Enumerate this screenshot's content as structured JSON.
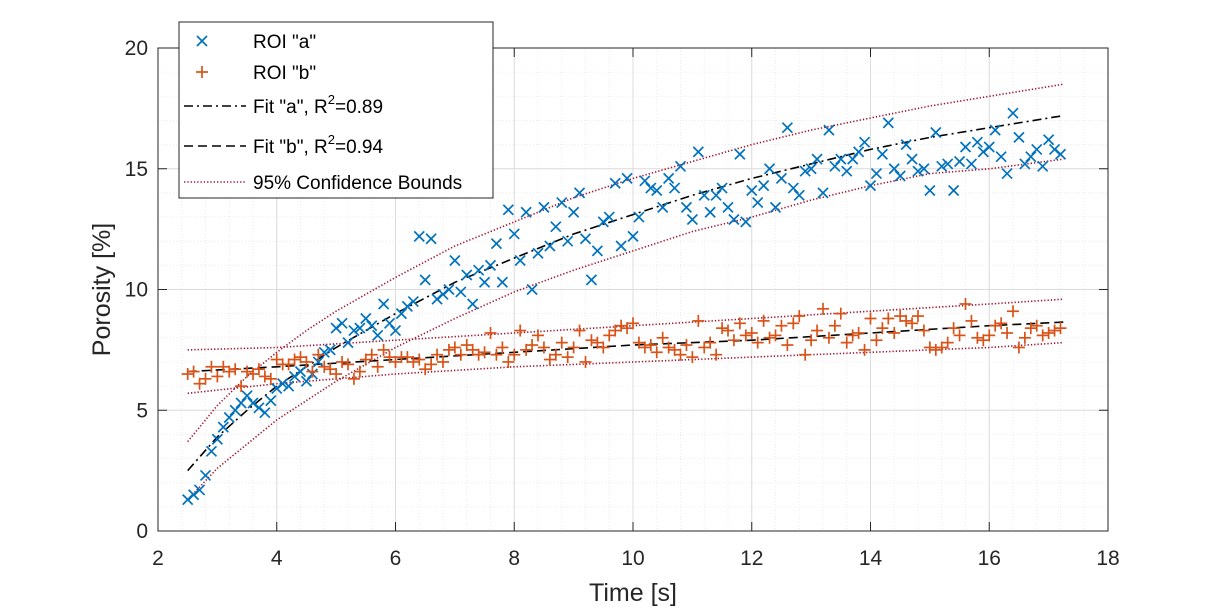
{
  "chart_data": {
    "type": "scatter",
    "xlabel": "Time [s]",
    "ylabel": "Porosity [%]",
    "xlim": [
      2,
      18
    ],
    "ylim": [
      0,
      20
    ],
    "xticks": [
      2,
      4,
      6,
      8,
      10,
      12,
      14,
      16,
      18
    ],
    "yticks": [
      0,
      5,
      10,
      15,
      20
    ],
    "x_minor_step": 0.4,
    "y_minor_step": 1,
    "grid": "major-and-minor",
    "legend_position": "top-left",
    "legend": [
      {
        "key": "a",
        "label": "ROI \"a\"",
        "marker": "x"
      },
      {
        "key": "b",
        "label": "ROI \"b\"",
        "marker": "+"
      },
      {
        "key": "fit_a",
        "label_pre": "Fit \"a\", R",
        "label_sup": "2",
        "label_post": "=0.89",
        "line": "dashdot"
      },
      {
        "key": "fit_b",
        "label_pre": "Fit \"b\", R",
        "label_sup": "2",
        "label_post": "=0.94",
        "line": "dashed"
      },
      {
        "key": "bounds",
        "label": "95% Confidence Bounds",
        "line": "dotted"
      }
    ],
    "colors": {
      "roi_a": "#0072BD",
      "roi_b": "#D95319",
      "fit": "#000000",
      "bounds": "#A2142F",
      "grid": "#dcdcdc",
      "axis": "#262626"
    },
    "series": [
      {
        "name": "ROI \"a\"",
        "marker": "x",
        "x": [
          2.5,
          2.6,
          2.7,
          2.8,
          2.9,
          3.0,
          3.1,
          3.2,
          3.3,
          3.4,
          3.5,
          3.6,
          3.7,
          3.8,
          3.9,
          4.0,
          4.1,
          4.2,
          4.3,
          4.4,
          4.5,
          4.6,
          4.7,
          4.8,
          4.9,
          5.0,
          5.1,
          5.2,
          5.3,
          5.4,
          5.5,
          5.6,
          5.7,
          5.8,
          5.9,
          6.0,
          6.1,
          6.2,
          6.3,
          6.4,
          6.5,
          6.6,
          6.7,
          6.8,
          6.9,
          7.0,
          7.1,
          7.2,
          7.3,
          7.4,
          7.5,
          7.6,
          7.7,
          7.8,
          7.9,
          8.0,
          8.1,
          8.2,
          8.3,
          8.4,
          8.5,
          8.6,
          8.7,
          8.8,
          8.9,
          9.0,
          9.1,
          9.2,
          9.3,
          9.4,
          9.5,
          9.6,
          9.7,
          9.8,
          9.9,
          10.0,
          10.1,
          10.2,
          10.3,
          10.4,
          10.5,
          10.6,
          10.7,
          10.8,
          10.9,
          11.0,
          11.1,
          11.2,
          11.3,
          11.4,
          11.5,
          11.6,
          11.7,
          11.8,
          11.9,
          12.0,
          12.1,
          12.2,
          12.3,
          12.4,
          12.5,
          12.6,
          12.7,
          12.8,
          12.9,
          13.0,
          13.1,
          13.2,
          13.3,
          13.4,
          13.5,
          13.6,
          13.7,
          13.8,
          13.9,
          14.0,
          14.1,
          14.2,
          14.3,
          14.4,
          14.5,
          14.6,
          14.7,
          14.8,
          14.9,
          15.0,
          15.1,
          15.2,
          15.3,
          15.4,
          15.5,
          15.6,
          15.7,
          15.8,
          15.9,
          16.0,
          16.1,
          16.2,
          16.3,
          16.4,
          16.5,
          16.6,
          16.7,
          16.8,
          16.9,
          17.0,
          17.1,
          17.2
        ],
        "y": [
          1.3,
          1.5,
          1.7,
          2.3,
          3.3,
          3.8,
          4.3,
          4.7,
          5.0,
          5.3,
          5.6,
          5.3,
          5.1,
          4.9,
          5.4,
          5.9,
          6.1,
          6.0,
          6.4,
          6.6,
          6.2,
          6.5,
          7.0,
          7.4,
          7.5,
          8.4,
          8.6,
          7.8,
          8.3,
          8.4,
          8.8,
          8.5,
          8.1,
          9.4,
          8.6,
          8.3,
          9.0,
          9.3,
          9.5,
          12.2,
          10.4,
          12.1,
          9.6,
          9.8,
          10.0,
          11.2,
          9.9,
          10.6,
          9.4,
          10.8,
          10.3,
          11.0,
          11.9,
          10.3,
          13.3,
          12.3,
          11.2,
          13.2,
          10.0,
          11.5,
          13.4,
          11.8,
          12.6,
          13.6,
          12.0,
          13.2,
          14.0,
          12.1,
          10.4,
          11.6,
          12.8,
          13.0,
          14.4,
          11.8,
          14.6,
          12.2,
          13.0,
          14.5,
          14.2,
          14.1,
          13.4,
          14.6,
          14.2,
          15.1,
          13.4,
          12.9,
          15.7,
          13.9,
          13.2,
          13.9,
          14.2,
          13.4,
          12.9,
          15.6,
          12.8,
          14.1,
          13.6,
          14.3,
          15.0,
          13.4,
          14.6,
          16.7,
          14.2,
          13.9,
          14.9,
          15.0,
          15.4,
          14.0,
          16.6,
          15.1,
          15.4,
          14.9,
          15.4,
          15.7,
          16.1,
          14.3,
          14.8,
          15.6,
          16.9,
          15.0,
          14.7,
          16.0,
          15.4,
          14.9,
          15.0,
          14.1,
          16.5,
          15.1,
          15.2,
          14.1,
          15.3,
          15.9,
          15.2,
          16.1,
          15.7,
          15.9,
          16.6,
          15.5,
          14.8,
          17.3,
          16.3,
          15.2,
          15.5,
          15.8,
          15.1,
          16.2,
          15.8,
          15.6
        ]
      },
      {
        "name": "ROI \"b\"",
        "marker": "+",
        "x": [
          2.5,
          2.6,
          2.7,
          2.8,
          2.9,
          3.0,
          3.1,
          3.2,
          3.3,
          3.4,
          3.5,
          3.6,
          3.7,
          3.8,
          3.9,
          4.0,
          4.1,
          4.2,
          4.3,
          4.4,
          4.5,
          4.6,
          4.7,
          4.8,
          4.9,
          5.0,
          5.1,
          5.2,
          5.3,
          5.4,
          5.5,
          5.6,
          5.7,
          5.8,
          5.9,
          6.0,
          6.1,
          6.2,
          6.3,
          6.4,
          6.5,
          6.6,
          6.7,
          6.8,
          6.9,
          7.0,
          7.1,
          7.2,
          7.3,
          7.4,
          7.5,
          7.6,
          7.7,
          7.8,
          7.9,
          8.0,
          8.1,
          8.2,
          8.3,
          8.4,
          8.5,
          8.6,
          8.7,
          8.8,
          8.9,
          9.0,
          9.1,
          9.2,
          9.3,
          9.4,
          9.5,
          9.6,
          9.7,
          9.8,
          9.9,
          10.0,
          10.1,
          10.2,
          10.3,
          10.4,
          10.5,
          10.6,
          10.7,
          10.8,
          10.9,
          11.0,
          11.1,
          11.2,
          11.3,
          11.4,
          11.5,
          11.6,
          11.7,
          11.8,
          11.9,
          12.0,
          12.1,
          12.2,
          12.3,
          12.4,
          12.5,
          12.6,
          12.7,
          12.8,
          12.9,
          13.0,
          13.1,
          13.2,
          13.3,
          13.4,
          13.5,
          13.6,
          13.7,
          13.8,
          13.9,
          14.0,
          14.1,
          14.2,
          14.3,
          14.4,
          14.5,
          14.6,
          14.7,
          14.8,
          14.9,
          15.0,
          15.1,
          15.2,
          15.3,
          15.4,
          15.5,
          15.6,
          15.7,
          15.8,
          15.9,
          16.0,
          16.1,
          16.2,
          16.3,
          16.4,
          16.5,
          16.6,
          16.7,
          16.8,
          16.9,
          17.0,
          17.1,
          17.2
        ],
        "y": [
          6.5,
          6.6,
          6.1,
          6.3,
          6.8,
          6.4,
          6.8,
          6.6,
          6.7,
          6.0,
          6.6,
          6.5,
          6.7,
          6.4,
          6.3,
          7.1,
          6.9,
          6.9,
          7.1,
          7.2,
          7.0,
          6.6,
          7.3,
          6.8,
          6.7,
          6.5,
          7.0,
          6.9,
          6.3,
          6.6,
          7.1,
          7.3,
          6.8,
          7.5,
          7.2,
          7.0,
          7.2,
          7.2,
          7.0,
          7.1,
          6.7,
          6.9,
          7.3,
          7.0,
          7.5,
          7.6,
          7.3,
          7.7,
          7.5,
          7.3,
          7.4,
          8.2,
          7.3,
          7.6,
          7.0,
          7.3,
          8.3,
          7.5,
          7.7,
          8.1,
          7.6,
          7.1,
          7.3,
          7.8,
          7.2,
          7.6,
          8.3,
          7.0,
          7.9,
          7.8,
          7.6,
          8.1,
          8.3,
          8.5,
          8.4,
          8.6,
          7.8,
          7.6,
          7.7,
          7.4,
          8.0,
          7.6,
          7.5,
          7.3,
          7.7,
          7.2,
          8.7,
          7.6,
          7.8,
          7.3,
          8.4,
          8.3,
          7.9,
          8.6,
          8.1,
          8.2,
          7.8,
          8.7,
          8.0,
          8.1,
          8.5,
          7.7,
          8.6,
          8.9,
          7.3,
          7.9,
          8.3,
          9.2,
          8.0,
          8.5,
          9.0,
          7.8,
          8.1,
          8.2,
          7.5,
          8.8,
          7.9,
          8.4,
          8.8,
          8.2,
          8.9,
          8.7,
          8.6,
          8.9,
          8.3,
          7.6,
          7.5,
          7.6,
          7.8,
          8.4,
          8.1,
          9.4,
          8.7,
          8.0,
          7.9,
          8.1,
          8.5,
          8.6,
          8.2,
          9.1,
          7.6,
          8.0,
          8.4,
          8.5,
          8.1,
          8.2,
          8.3,
          8.4
        ]
      },
      {
        "name": "Fit \"a\"",
        "line": "dashdot",
        "x": [
          2.5,
          3.0,
          3.5,
          4.0,
          4.5,
          5.0,
          6.0,
          7.0,
          8.0,
          9.0,
          10.0,
          11.0,
          12.0,
          13.0,
          14.0,
          15.0,
          16.0,
          17.25
        ],
        "y": [
          2.5,
          3.9,
          5.0,
          6.0,
          6.8,
          7.6,
          9.0,
          10.3,
          11.3,
          12.3,
          13.1,
          13.9,
          14.6,
          15.2,
          15.8,
          16.3,
          16.7,
          17.2
        ]
      },
      {
        "name": "Fit \"b\"",
        "line": "dashed",
        "x": [
          2.5,
          4.0,
          6.0,
          8.0,
          10.0,
          12.0,
          14.0,
          16.0,
          17.25
        ],
        "y": [
          6.6,
          6.8,
          7.1,
          7.4,
          7.7,
          7.9,
          8.2,
          8.5,
          8.65
        ]
      },
      {
        "name": "95% Confidence Bounds a (upper)",
        "line": "dotted",
        "x": [
          2.5,
          3.0,
          3.5,
          4.0,
          4.5,
          5.0,
          6.0,
          7.0,
          8.0,
          9.0,
          10.0,
          11.0,
          12.0,
          13.0,
          14.0,
          15.0,
          16.0,
          17.25
        ],
        "y": [
          3.7,
          5.2,
          6.4,
          7.4,
          8.3,
          9.1,
          10.5,
          11.8,
          12.8,
          13.8,
          14.6,
          15.3,
          16.0,
          16.6,
          17.1,
          17.6,
          18.0,
          18.5
        ]
      },
      {
        "name": "95% Confidence Bounds a (lower)",
        "line": "dotted",
        "x": [
          2.5,
          3.0,
          3.5,
          4.0,
          4.5,
          5.0,
          6.0,
          7.0,
          8.0,
          9.0,
          10.0,
          11.0,
          12.0,
          13.0,
          14.0,
          15.0,
          16.0,
          17.25
        ],
        "y": [
          1.3,
          2.6,
          3.6,
          4.6,
          5.4,
          6.2,
          7.6,
          8.8,
          9.9,
          10.8,
          11.6,
          12.4,
          13.0,
          13.7,
          14.3,
          14.8,
          15.0,
          15.4
        ]
      },
      {
        "name": "95% Confidence Bounds b (upper)",
        "line": "dotted",
        "x": [
          2.5,
          4.0,
          6.0,
          8.0,
          10.0,
          12.0,
          14.0,
          16.0,
          17.25
        ],
        "y": [
          7.5,
          7.6,
          7.9,
          8.2,
          8.5,
          8.8,
          9.1,
          9.4,
          9.6
        ]
      },
      {
        "name": "95% Confidence Bounds b (lower)",
        "line": "dotted",
        "x": [
          2.5,
          4.0,
          6.0,
          8.0,
          10.0,
          12.0,
          14.0,
          16.0,
          17.25
        ],
        "y": [
          5.7,
          6.1,
          6.5,
          6.8,
          7.0,
          7.2,
          7.4,
          7.6,
          7.8
        ]
      }
    ]
  }
}
